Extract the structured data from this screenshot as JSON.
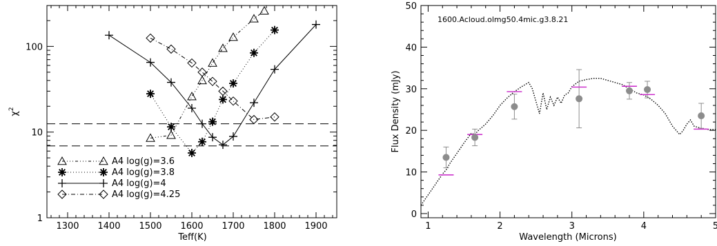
{
  "chart_data": [
    {
      "type": "line",
      "xlabel": "Teff(K)",
      "ylabel": "χ",
      "ylabel_superscript": "2",
      "xlim": [
        1250,
        1950
      ],
      "ylim": [
        1,
        300
      ],
      "y_scale": "log",
      "x_ticks": [
        "1300",
        "1400",
        "1500",
        "1600",
        "1700",
        "1800",
        "1900"
      ],
      "x_tick_values": [
        1300,
        1400,
        1500,
        1600,
        1700,
        1800,
        1900
      ],
      "y_ticks": [
        "1",
        "10",
        "100"
      ],
      "y_tick_values": [
        1,
        10,
        100
      ],
      "hlines": [
        12.5,
        6.9
      ],
      "legend_position": "bottom-left",
      "series": [
        {
          "name": "A4  log(g)=3.6",
          "marker": "triangle",
          "dash": "4,3,1,3,1,3,1,3",
          "x": [
            1500,
            1550,
            1600,
            1625,
            1650,
            1675,
            1700,
            1750,
            1775
          ],
          "y": [
            8.5,
            9.2,
            26,
            40,
            64,
            95,
            128,
            210,
            260
          ]
        },
        {
          "name": "A4  log(g)=3.8",
          "marker": "asterisk",
          "dash": "1,3",
          "x": [
            1500,
            1550,
            1600,
            1625,
            1650,
            1675,
            1700,
            1750,
            1800
          ],
          "y": [
            28,
            11.5,
            5.7,
            7.7,
            13.2,
            24,
            37,
            84,
            155
          ]
        },
        {
          "name": "A4  log(g)=4",
          "marker": "plus",
          "dash": "",
          "x": [
            1400,
            1500,
            1550,
            1600,
            1625,
            1650,
            1675,
            1700,
            1750,
            1800,
            1900
          ],
          "y": [
            135,
            65,
            38,
            19,
            12.5,
            8.7,
            7.1,
            8.9,
            22,
            54,
            180
          ]
        },
        {
          "name": "A4  log(g)=4.25",
          "marker": "diamond",
          "dash": "6,3,1,3",
          "x": [
            1500,
            1550,
            1600,
            1625,
            1650,
            1675,
            1700,
            1750,
            1800
          ],
          "y": [
            125,
            93,
            64,
            50,
            39,
            30,
            23,
            14,
            15
          ]
        }
      ]
    },
    {
      "type": "line",
      "xlabel": "Wavelength (Microns)",
      "ylabel": "Flux Density (mJy)",
      "annotation": "1600.Acloud.olmg50.4mic.g3.8.21",
      "xlim": [
        0.9,
        5
      ],
      "ylim": [
        -1,
        50
      ],
      "x_ticks": [
        "1",
        "2",
        "3",
        "4",
        "5"
      ],
      "x_tick_values": [
        1,
        2,
        3,
        4,
        5
      ],
      "y_ticks": [
        "0",
        "10",
        "20",
        "30",
        "40",
        "50"
      ],
      "y_tick_values": [
        0,
        10,
        20,
        30,
        40,
        50
      ],
      "model_spectrum": {
        "x": [
          0.9,
          1.0,
          1.1,
          1.2,
          1.25,
          1.3,
          1.4,
          1.5,
          1.6,
          1.65,
          1.7,
          1.8,
          1.9,
          2.0,
          2.1,
          2.2,
          2.3,
          2.4,
          2.45,
          2.5,
          2.55,
          2.6,
          2.65,
          2.7,
          2.75,
          2.8,
          2.85,
          2.9,
          2.95,
          3.0,
          3.1,
          3.2,
          3.3,
          3.4,
          3.5,
          3.6,
          3.7,
          3.8,
          3.9,
          4.0,
          4.1,
          4.2,
          4.3,
          4.4,
          4.5,
          4.55,
          4.6,
          4.65,
          4.7,
          4.8,
          4.9,
          5.0
        ],
        "y": [
          2,
          4.5,
          7,
          9.5,
          10.5,
          12,
          14.5,
          17,
          19.3,
          19,
          20,
          21.5,
          23.5,
          26,
          27.8,
          29.3,
          30.5,
          31.5,
          30,
          27,
          24,
          29,
          25,
          28,
          26,
          28,
          26.5,
          28.5,
          29,
          30.5,
          31.8,
          32.2,
          32.5,
          32.5,
          32,
          31.5,
          31,
          30,
          29,
          28.5,
          27.5,
          26,
          24,
          21,
          19,
          20,
          21.5,
          22.5,
          21,
          20.5,
          20.2,
          20.2
        ]
      },
      "observations": {
        "x": [
          1.25,
          1.65,
          2.2,
          3.1,
          3.8,
          4.05,
          4.8
        ],
        "y": [
          13.5,
          18.3,
          25.7,
          27.6,
          29.5,
          29.8,
          23.5
        ],
        "err": [
          2.5,
          2.0,
          3.0,
          7.0,
          2.0,
          2.0,
          3.0
        ]
      },
      "model_band_fluxes": {
        "x": [
          1.25,
          1.65,
          2.2,
          3.1,
          3.8,
          4.05,
          4.8
        ],
        "y": [
          9.3,
          19,
          29.3,
          30.4,
          30.6,
          28.6,
          20.3
        ]
      },
      "colors": {
        "observed": "#8c8c8c",
        "band_flux": "#cc33cc",
        "model": "#000000"
      }
    }
  ]
}
